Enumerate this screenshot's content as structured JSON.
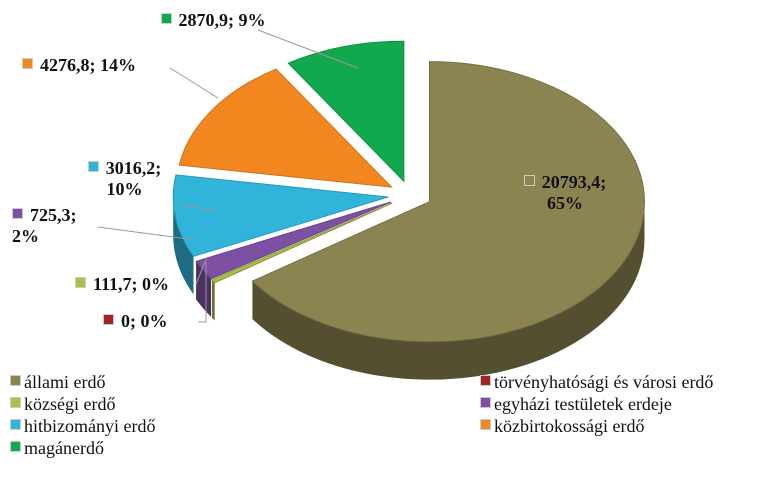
{
  "chart_data": {
    "type": "pie",
    "categories": [
      "állami erdő",
      "törvényhatósági és városi erdő",
      "községi erdő",
      "egyházi testületek erdeje",
      "hitbizományi erdő",
      "közbirtokossági erdő",
      "magánerdő"
    ],
    "values": [
      20793.4,
      0,
      111.7,
      725.3,
      3016.2,
      4276.8,
      2870.9
    ],
    "value_labels": [
      "20793,4; 65%",
      "0; 0%",
      "111,7; 0%",
      "725,3; 2%",
      "3016,2; 10%",
      "4276,8; 14%",
      "2870,9; 9%"
    ],
    "colors": [
      "#8c8450",
      "#a32424",
      "#a8c244",
      "#7d50a3",
      "#30b4da",
      "#f2871f",
      "#12a84e"
    ],
    "legend": "bottom"
  }
}
